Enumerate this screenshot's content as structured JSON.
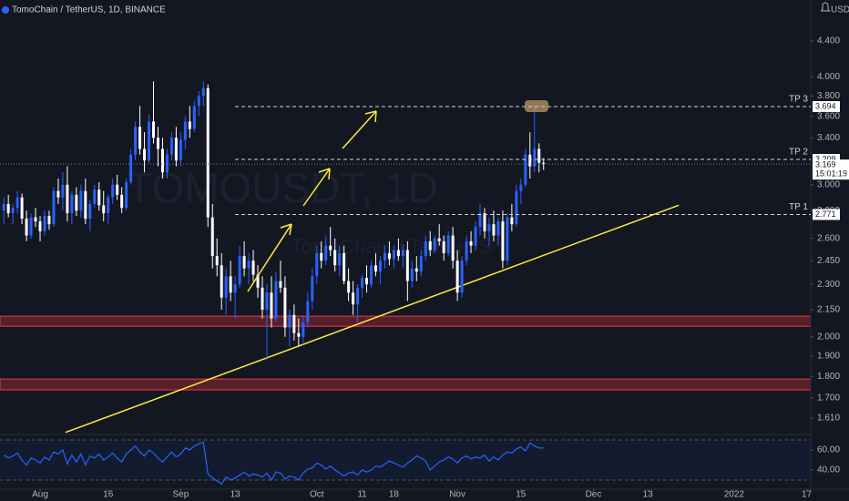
{
  "header": {
    "title": "TomoChain / TetherUS, 1D, BINANCE",
    "currency": "USDT"
  },
  "chart_data": {
    "type": "candlestick",
    "watermark": "TOMOUSDT, 1D",
    "watermark_sub": "TomoChain / TetherUS",
    "log": true,
    "up_color": "#2962ff",
    "down_color": "#ffffff",
    "ylim": [
      1.549,
      4.908
    ],
    "yticks": [
      {
        "value": 4.4,
        "label": "4.400"
      },
      {
        "value": 4.0,
        "label": "4.000"
      },
      {
        "value": 3.8,
        "label": "3.800"
      },
      {
        "value": 3.6,
        "label": "3.600"
      },
      {
        "value": 3.4,
        "label": "3.400"
      },
      {
        "value": 3.0,
        "label": "3.000"
      },
      {
        "value": 2.8,
        "label": "2.800"
      },
      {
        "value": 2.6,
        "label": "2.600"
      },
      {
        "value": 2.45,
        "label": "2.450"
      },
      {
        "value": 2.3,
        "label": "2.300"
      },
      {
        "value": 2.15,
        "label": "2.150"
      },
      {
        "value": 2.0,
        "label": "2.000"
      },
      {
        "value": 1.9,
        "label": "1.900"
      },
      {
        "value": 1.8,
        "label": "1.800"
      },
      {
        "value": 1.7,
        "label": "1.700"
      },
      {
        "value": 1.61,
        "label": "1.610"
      }
    ],
    "xlim": [
      -0.84,
      177.9
    ],
    "xticks": [
      {
        "value": 8,
        "label": "Aug"
      },
      {
        "value": 23,
        "label": "16"
      },
      {
        "value": 39,
        "label": "Sep"
      },
      {
        "value": 51,
        "label": "13"
      },
      {
        "value": 69,
        "label": "Oct"
      },
      {
        "value": 79,
        "label": "11"
      },
      {
        "value": 86,
        "label": "18"
      },
      {
        "value": 100,
        "label": "Nov"
      },
      {
        "value": 114,
        "label": "15"
      },
      {
        "value": 130,
        "label": "Dec"
      },
      {
        "value": 142,
        "label": "13"
      },
      {
        "value": 161,
        "label": "2022"
      },
      {
        "value": 177,
        "label": "17"
      }
    ],
    "candles": [
      [
        2.8,
        2.9,
        2.7,
        2.85
      ],
      [
        2.85,
        2.92,
        2.75,
        2.78
      ],
      [
        2.78,
        2.85,
        2.7,
        2.82
      ],
      [
        2.82,
        2.95,
        2.78,
        2.9
      ],
      [
        2.9,
        2.93,
        2.7,
        2.74
      ],
      [
        2.74,
        2.8,
        2.58,
        2.62
      ],
      [
        2.62,
        2.78,
        2.6,
        2.75
      ],
      [
        2.75,
        2.82,
        2.68,
        2.72
      ],
      [
        2.72,
        2.76,
        2.58,
        2.65
      ],
      [
        2.65,
        2.8,
        2.62,
        2.76
      ],
      [
        2.76,
        2.8,
        2.66,
        2.7
      ],
      [
        2.7,
        2.98,
        2.68,
        2.95
      ],
      [
        2.95,
        3.05,
        2.85,
        2.9
      ],
      [
        2.9,
        3.1,
        2.8,
        3.0
      ],
      [
        3.0,
        3.15,
        2.72,
        2.78
      ],
      [
        2.78,
        2.95,
        2.7,
        2.92
      ],
      [
        2.92,
        2.98,
        2.76,
        2.8
      ],
      [
        2.8,
        3.0,
        2.75,
        2.95
      ],
      [
        2.95,
        3.05,
        2.7,
        2.74
      ],
      [
        2.74,
        2.88,
        2.65,
        2.85
      ],
      [
        2.85,
        3.0,
        2.82,
        2.96
      ],
      [
        2.96,
        3.02,
        2.8,
        2.84
      ],
      [
        2.84,
        2.95,
        2.72,
        2.78
      ],
      [
        2.78,
        2.92,
        2.7,
        2.9
      ],
      [
        2.9,
        3.05,
        2.85,
        3.0
      ],
      [
        3.0,
        3.08,
        2.88,
        2.92
      ],
      [
        2.92,
        2.98,
        2.78,
        2.82
      ],
      [
        2.82,
        3.05,
        2.8,
        3.02
      ],
      [
        3.02,
        3.3,
        3.0,
        3.25
      ],
      [
        3.25,
        3.55,
        3.2,
        3.5
      ],
      [
        3.5,
        3.7,
        3.25,
        3.3
      ],
      [
        3.3,
        3.45,
        3.1,
        3.2
      ],
      [
        3.2,
        3.62,
        3.18,
        3.55
      ],
      [
        3.55,
        3.95,
        3.35,
        3.4
      ],
      [
        3.4,
        3.5,
        3.15,
        3.3
      ],
      [
        3.3,
        3.4,
        3.05,
        3.1
      ],
      [
        3.1,
        3.3,
        3.05,
        3.25
      ],
      [
        3.25,
        3.45,
        3.2,
        3.4
      ],
      [
        3.4,
        3.5,
        3.15,
        3.2
      ],
      [
        3.2,
        3.45,
        3.15,
        3.38
      ],
      [
        3.38,
        3.6,
        3.3,
        3.55
      ],
      [
        3.55,
        3.7,
        3.4,
        3.48
      ],
      [
        3.48,
        3.75,
        3.45,
        3.7
      ],
      [
        3.7,
        3.85,
        3.6,
        3.8
      ],
      [
        3.8,
        3.95,
        3.7,
        3.88
      ],
      [
        3.88,
        3.92,
        2.68,
        2.75
      ],
      [
        2.75,
        2.85,
        2.4,
        2.48
      ],
      [
        2.48,
        2.6,
        2.35,
        2.42
      ],
      [
        2.42,
        2.5,
        2.15,
        2.22
      ],
      [
        2.22,
        2.4,
        2.12,
        2.35
      ],
      [
        2.35,
        2.45,
        2.2,
        2.25
      ],
      [
        2.25,
        2.35,
        2.1,
        2.3
      ],
      [
        2.3,
        2.55,
        2.28,
        2.48
      ],
      [
        2.48,
        2.58,
        2.35,
        2.4
      ],
      [
        2.4,
        2.5,
        2.3,
        2.45
      ],
      [
        2.45,
        2.52,
        2.32,
        2.36
      ],
      [
        2.36,
        2.42,
        2.22,
        2.28
      ],
      [
        2.28,
        2.35,
        2.1,
        2.15
      ],
      [
        2.15,
        2.3,
        1.88,
        2.25
      ],
      [
        2.25,
        2.35,
        2.05,
        2.1
      ],
      [
        2.1,
        2.38,
        2.08,
        2.32
      ],
      [
        2.32,
        2.45,
        2.25,
        2.28
      ],
      [
        2.28,
        2.35,
        2.0,
        2.05
      ],
      [
        2.05,
        2.15,
        1.95,
        2.12
      ],
      [
        2.12,
        2.18,
        1.98,
        2.02
      ],
      [
        2.02,
        2.1,
        1.95,
        2.0
      ],
      [
        2.0,
        2.12,
        1.96,
        2.08
      ],
      [
        2.08,
        2.25,
        2.05,
        2.2
      ],
      [
        2.2,
        2.4,
        2.15,
        2.35
      ],
      [
        2.35,
        2.55,
        2.3,
        2.5
      ],
      [
        2.5,
        2.58,
        2.4,
        2.45
      ],
      [
        2.45,
        2.62,
        2.42,
        2.55
      ],
      [
        2.55,
        2.68,
        2.48,
        2.52
      ],
      [
        2.52,
        2.6,
        2.38,
        2.42
      ],
      [
        2.42,
        2.55,
        2.35,
        2.5
      ],
      [
        2.5,
        2.55,
        2.3,
        2.32
      ],
      [
        2.32,
        2.4,
        2.2,
        2.25
      ],
      [
        2.25,
        2.32,
        2.12,
        2.18
      ],
      [
        2.18,
        2.3,
        2.08,
        2.28
      ],
      [
        2.28,
        2.36,
        2.22,
        2.34
      ],
      [
        2.34,
        2.42,
        2.25,
        2.3
      ],
      [
        2.3,
        2.45,
        2.28,
        2.42
      ],
      [
        2.42,
        2.5,
        2.35,
        2.38
      ],
      [
        2.38,
        2.48,
        2.3,
        2.45
      ],
      [
        2.45,
        2.55,
        2.4,
        2.5
      ],
      [
        2.5,
        2.58,
        2.42,
        2.46
      ],
      [
        2.46,
        2.55,
        2.4,
        2.52
      ],
      [
        2.52,
        2.6,
        2.45,
        2.48
      ],
      [
        2.48,
        2.56,
        2.4,
        2.52
      ],
      [
        2.52,
        2.58,
        2.2,
        2.32
      ],
      [
        2.32,
        2.45,
        2.28,
        2.4
      ],
      [
        2.4,
        2.48,
        2.32,
        2.38
      ],
      [
        2.38,
        2.52,
        2.35,
        2.48
      ],
      [
        2.48,
        2.62,
        2.45,
        2.58
      ],
      [
        2.58,
        2.65,
        2.48,
        2.52
      ],
      [
        2.52,
        2.62,
        2.5,
        2.6
      ],
      [
        2.6,
        2.7,
        2.55,
        2.58
      ],
      [
        2.58,
        2.62,
        2.45,
        2.5
      ],
      [
        2.5,
        2.65,
        2.48,
        2.62
      ],
      [
        2.62,
        2.68,
        2.4,
        2.45
      ],
      [
        2.45,
        2.52,
        2.2,
        2.25
      ],
      [
        2.25,
        2.48,
        2.22,
        2.45
      ],
      [
        2.45,
        2.62,
        2.42,
        2.58
      ],
      [
        2.58,
        2.65,
        2.5,
        2.55
      ],
      [
        2.55,
        2.72,
        2.52,
        2.68
      ],
      [
        2.68,
        2.85,
        2.62,
        2.78
      ],
      [
        2.78,
        2.82,
        2.6,
        2.65
      ],
      [
        2.65,
        2.75,
        2.55,
        2.7
      ],
      [
        2.7,
        2.8,
        2.58,
        2.62
      ],
      [
        2.62,
        2.75,
        2.55,
        2.72
      ],
      [
        2.72,
        2.8,
        2.4,
        2.45
      ],
      [
        2.45,
        2.78,
        2.42,
        2.75
      ],
      [
        2.75,
        2.85,
        2.65,
        2.7
      ],
      [
        2.7,
        3.0,
        2.68,
        2.95
      ],
      [
        2.95,
        3.05,
        2.85,
        3.0
      ],
      [
        3.0,
        3.3,
        2.98,
        3.25
      ],
      [
        3.25,
        3.45,
        3.05,
        3.15
      ],
      [
        3.15,
        3.7,
        3.1,
        3.3
      ],
      [
        3.3,
        3.35,
        3.1,
        3.18
      ],
      [
        3.18,
        3.22,
        3.12,
        3.169
      ]
    ],
    "zones": [
      {
        "from": 2.057,
        "to": 2.113
      },
      {
        "from": 1.736,
        "to": 1.787
      }
    ],
    "zone_color": "#f23645",
    "levels": [
      {
        "label": "TP 3",
        "value": 3.694
      },
      {
        "label": "TP 2",
        "value": 3.209
      },
      {
        "label": "TP 1",
        "value": 2.771
      }
    ],
    "last": {
      "value": 3.169,
      "countdown": "15:01:19"
    },
    "trendline": {
      "x": [
        13.6,
        148.8
      ],
      "y": [
        1.55,
        2.84
      ],
      "color": "#ffeb3b"
    },
    "rsi": {
      "color": "#2962ff",
      "ylim": [
        25.5,
        72.7
      ],
      "yticks": [
        {
          "value": 60,
          "label": "60.00"
        },
        {
          "value": 40,
          "label": "40.00"
        }
      ],
      "bands": [
        30,
        70
      ],
      "values": [
        55,
        52,
        54,
        57,
        50,
        45,
        52,
        50,
        47,
        53,
        50,
        58,
        56,
        60,
        46,
        55,
        48,
        56,
        45,
        54,
        52,
        56,
        50,
        53,
        57,
        52,
        48,
        56,
        60,
        64,
        58,
        54,
        60,
        57,
        52,
        48,
        53,
        58,
        53,
        56,
        62,
        60,
        64,
        66,
        68,
        36,
        32,
        29,
        26,
        33,
        30,
        32,
        35,
        38,
        34,
        36,
        35,
        33,
        37,
        30,
        38,
        37,
        31,
        34,
        33,
        30,
        37,
        41,
        42,
        47,
        45,
        41,
        44,
        40,
        37,
        34,
        37,
        38,
        35,
        40,
        38,
        40,
        44,
        43,
        46,
        49,
        47,
        45,
        43,
        47,
        50,
        54,
        52,
        49,
        40,
        44,
        48,
        50,
        53,
        51,
        47,
        52,
        54,
        51,
        53,
        52,
        55,
        49,
        53,
        50,
        55,
        58,
        57,
        61,
        63,
        59,
        67,
        64,
        62,
        62
      ]
    }
  }
}
